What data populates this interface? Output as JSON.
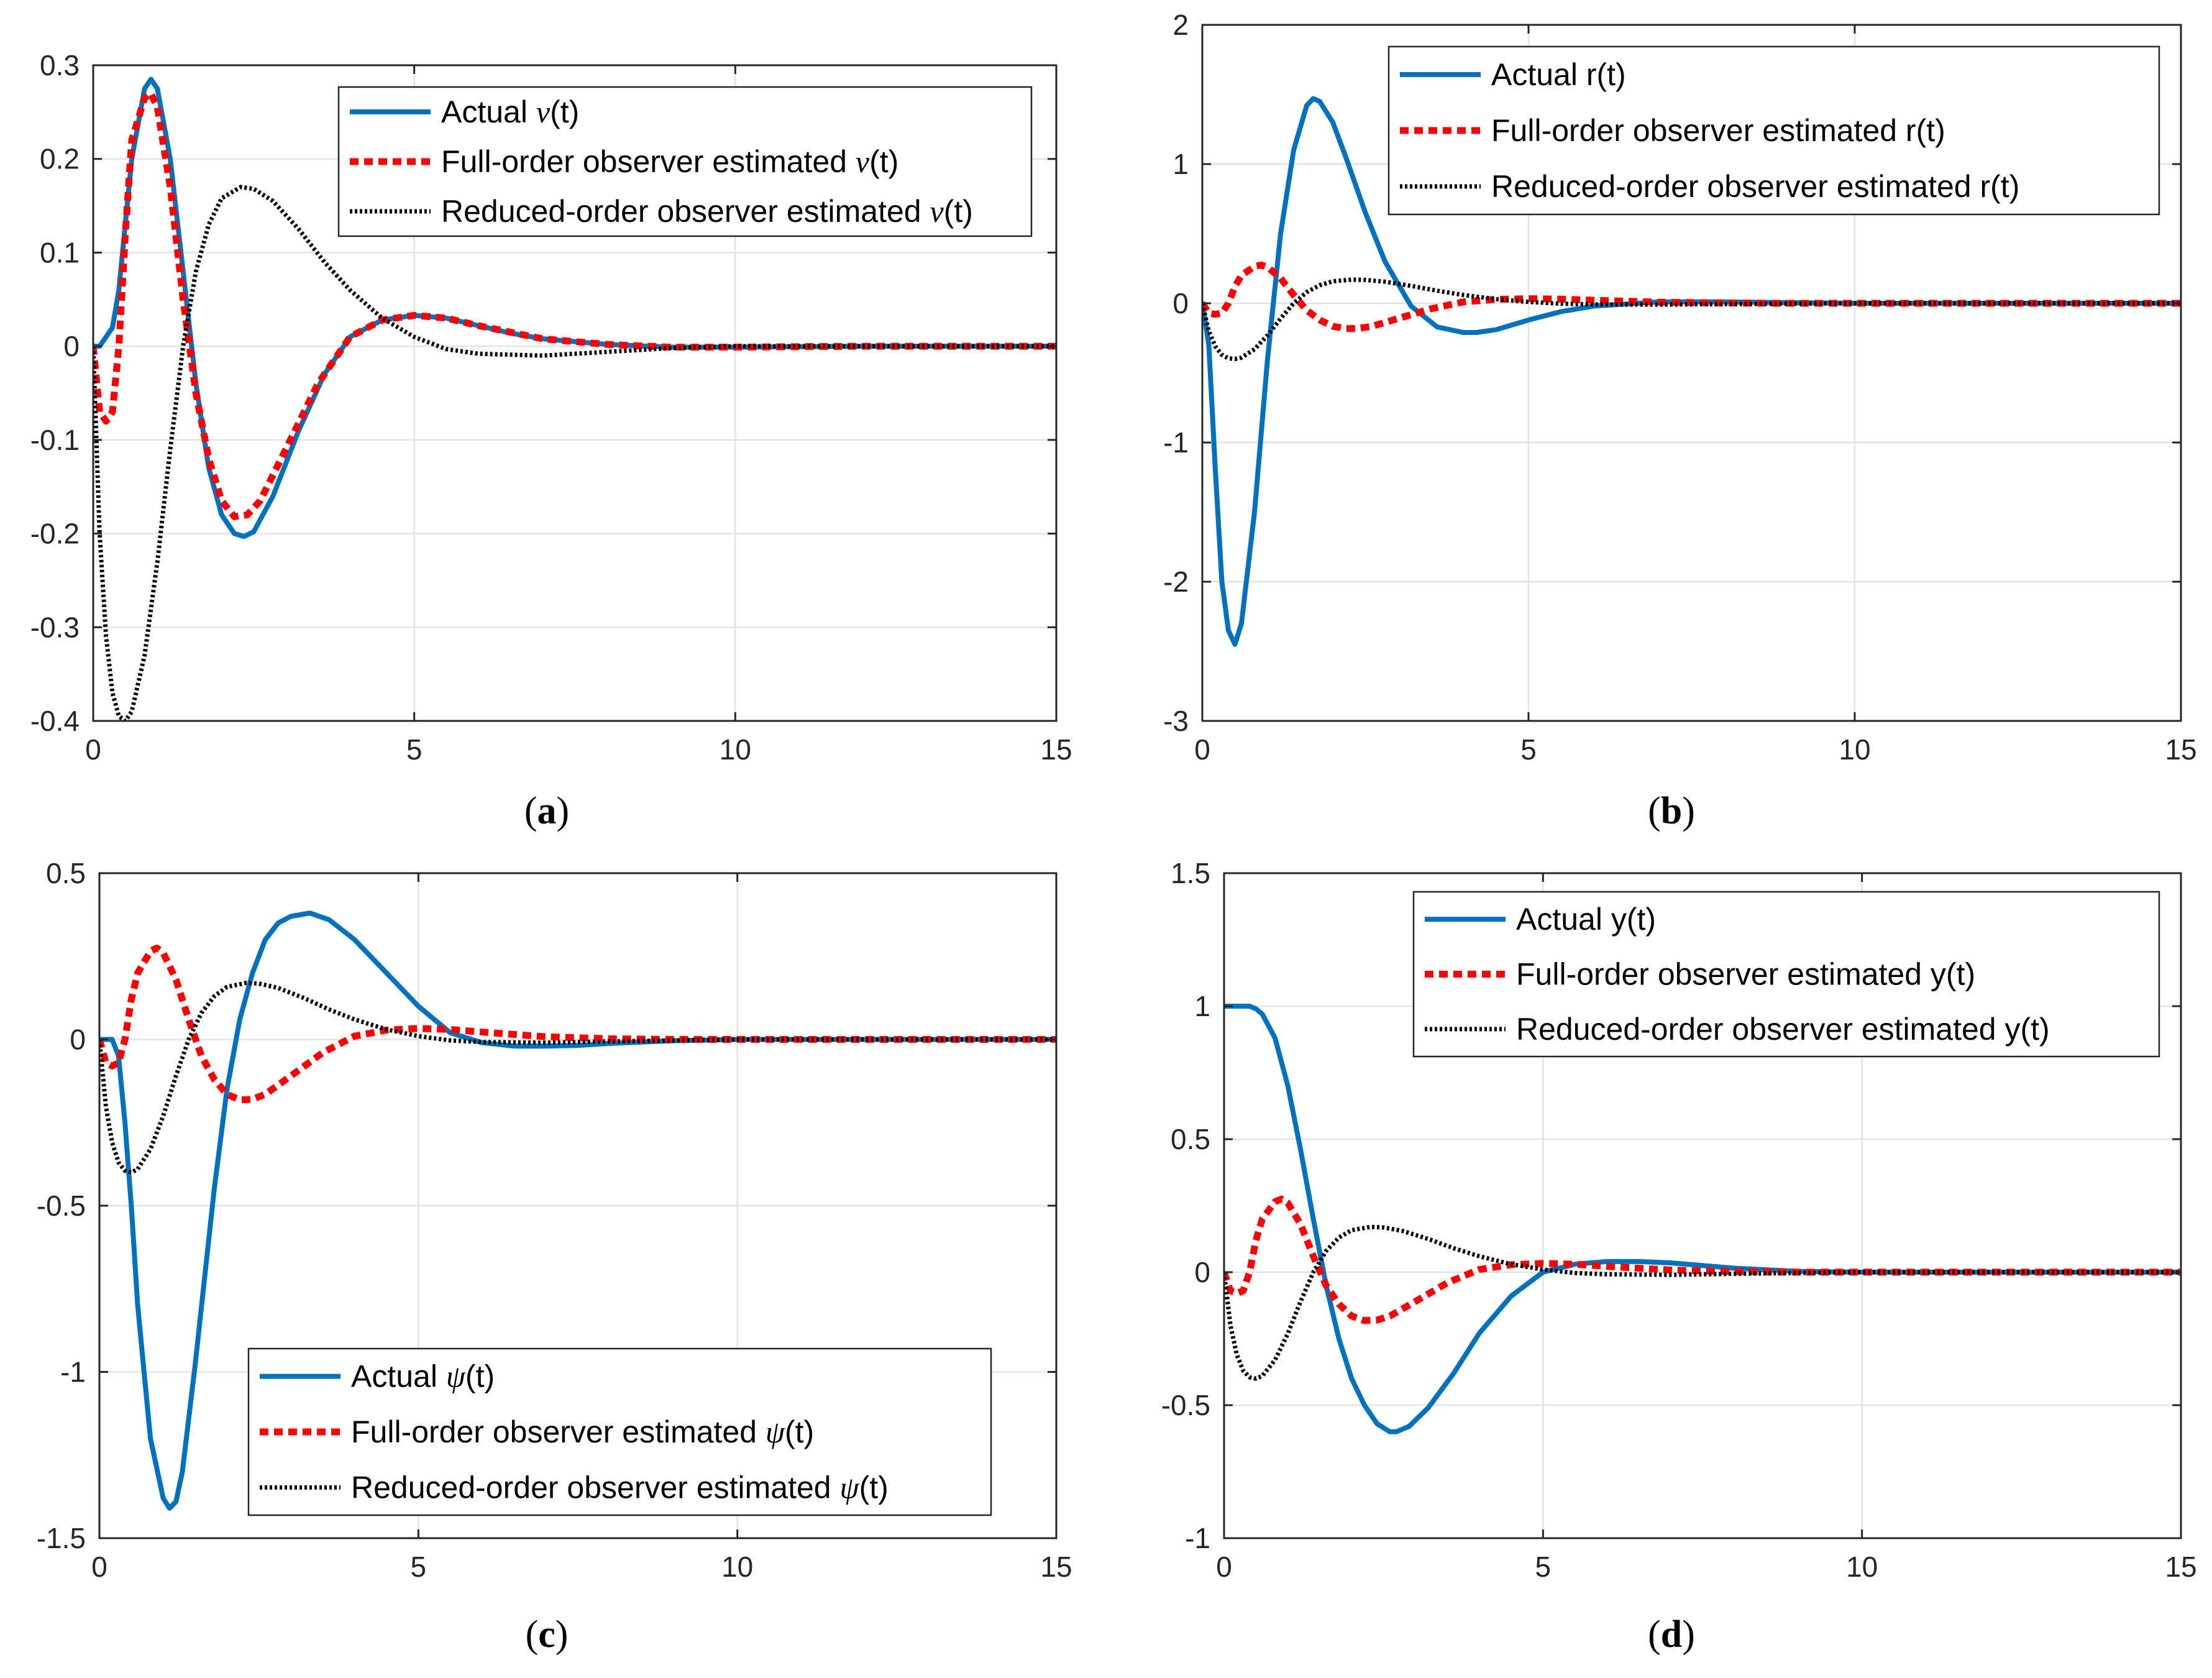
{
  "colors": {
    "actual": "#0072BD",
    "full_order": "#FF0000",
    "reduced_order": "#000000",
    "grid": "#E3E3E3",
    "axis": "#262626"
  },
  "chart_data": [
    {
      "type": "line",
      "panel": "a",
      "caption_open": "(",
      "caption_letter": "a",
      "caption_close": ")",
      "xlim": [
        0,
        15
      ],
      "ylim": [
        -0.4,
        0.3
      ],
      "xticks": [
        0,
        5,
        10,
        15
      ],
      "xtick_labels": [
        "0",
        "5",
        "10",
        "15"
      ],
      "yticks": [
        -0.4,
        -0.3,
        -0.2,
        -0.1,
        0,
        0.1,
        0.2,
        0.3
      ],
      "ytick_labels": [
        "-0.4",
        "-0.3",
        "-0.2",
        "-0.1",
        "0",
        "0.1",
        "0.2",
        "0.3"
      ],
      "grid": true,
      "legend_position": "top-right",
      "series": [
        {
          "name": "Actual ν(t)",
          "prefix": "Actual ",
          "symbol": "ν",
          "suffix": "(t)",
          "style": "solid",
          "color_key": "actual",
          "x": [
            0,
            0.1,
            0.2,
            0.3,
            0.4,
            0.6,
            0.8,
            0.9,
            1.0,
            1.2,
            1.4,
            1.6,
            1.8,
            2.0,
            2.2,
            2.35,
            2.5,
            2.8,
            3.2,
            3.6,
            4.0,
            4.5,
            5.0,
            5.5,
            6.0,
            6.5,
            7.0,
            8.0,
            9.0,
            10.0,
            12.0,
            15.0
          ],
          "y": [
            0,
            0,
            0.01,
            0.02,
            0.06,
            0.2,
            0.275,
            0.285,
            0.275,
            0.2,
            0.08,
            -0.04,
            -0.13,
            -0.18,
            -0.2,
            -0.203,
            -0.198,
            -0.16,
            -0.09,
            -0.03,
            0.01,
            0.028,
            0.033,
            0.03,
            0.022,
            0.014,
            0.008,
            0.002,
            -0.001,
            -0.001,
            0,
            0
          ]
        },
        {
          "name": "Full-order observer estimated ν(t)",
          "prefix": "Full-order observer estimated ",
          "symbol": "ν",
          "suffix": "(t)",
          "style": "dashed",
          "color_key": "full_order",
          "x": [
            0,
            0.1,
            0.2,
            0.3,
            0.4,
            0.5,
            0.6,
            0.8,
            0.9,
            1.0,
            1.2,
            1.4,
            1.6,
            1.8,
            2.0,
            2.2,
            2.4,
            2.6,
            3.0,
            3.5,
            4.0,
            4.5,
            5.0,
            5.5,
            6.0,
            7.0,
            8.0,
            9.0,
            10.0,
            12.0,
            15.0
          ],
          "y": [
            0,
            -0.07,
            -0.08,
            -0.07,
            0.0,
            0.12,
            0.22,
            0.265,
            0.27,
            0.255,
            0.17,
            0.05,
            -0.05,
            -0.12,
            -0.165,
            -0.182,
            -0.18,
            -0.165,
            -0.11,
            -0.04,
            0.01,
            0.028,
            0.033,
            0.03,
            0.022,
            0.008,
            0.002,
            -0.001,
            -0.001,
            0,
            0
          ]
        },
        {
          "name": "Reduced-order observer estimated ν(t)",
          "prefix": "Reduced-order observer estimated ",
          "symbol": "ν",
          "suffix": "(t)",
          "style": "dotted",
          "color_key": "reduced_order",
          "x": [
            0,
            0.1,
            0.2,
            0.3,
            0.4,
            0.5,
            0.6,
            0.8,
            1.0,
            1.2,
            1.4,
            1.6,
            1.8,
            2.0,
            2.3,
            2.5,
            2.8,
            3.2,
            3.6,
            4.0,
            4.5,
            5.0,
            5.5,
            6.0,
            7.0,
            8.0,
            9.0,
            10.0,
            12.0,
            15.0
          ],
          "y": [
            0,
            -0.2,
            -0.31,
            -0.37,
            -0.395,
            -0.4,
            -0.39,
            -0.33,
            -0.23,
            -0.11,
            0.0,
            0.08,
            0.13,
            0.158,
            0.17,
            0.168,
            0.155,
            0.125,
            0.09,
            0.06,
            0.03,
            0.01,
            -0.003,
            -0.008,
            -0.01,
            -0.006,
            -0.002,
            0,
            0,
            0
          ]
        }
      ]
    },
    {
      "type": "line",
      "panel": "b",
      "caption_open": "(",
      "caption_letter": "b",
      "caption_close": ")",
      "xlim": [
        0,
        15
      ],
      "ylim": [
        -3,
        2
      ],
      "xticks": [
        0,
        5,
        10,
        15
      ],
      "xtick_labels": [
        "0",
        "5",
        "10",
        "15"
      ],
      "yticks": [
        -3,
        -2,
        -1,
        0,
        1,
        2
      ],
      "ytick_labels": [
        "-3",
        "-2",
        "-1",
        "0",
        "1",
        "2"
      ],
      "grid": true,
      "legend_position": "top-right",
      "series": [
        {
          "name": "Actual r(t)",
          "prefix": "Actual r(t)",
          "symbol": "",
          "suffix": "",
          "style": "solid",
          "color_key": "actual",
          "x": [
            0,
            0.1,
            0.2,
            0.3,
            0.4,
            0.5,
            0.6,
            0.8,
            1.0,
            1.2,
            1.4,
            1.6,
            1.7,
            1.8,
            2.0,
            2.2,
            2.5,
            2.8,
            3.2,
            3.6,
            4.0,
            4.2,
            4.5,
            5.0,
            5.5,
            6.0,
            7.0,
            8.0,
            10.0,
            15.0
          ],
          "y": [
            0,
            -0.3,
            -1.2,
            -2.0,
            -2.35,
            -2.45,
            -2.3,
            -1.5,
            -0.4,
            0.5,
            1.1,
            1.42,
            1.47,
            1.45,
            1.3,
            1.05,
            0.65,
            0.3,
            -0.02,
            -0.17,
            -0.21,
            -0.21,
            -0.19,
            -0.12,
            -0.06,
            -0.02,
            0.01,
            0.01,
            0,
            0
          ]
        },
        {
          "name": "Full-order observer estimated r(t)",
          "prefix": "Full-order observer estimated r(t)",
          "symbol": "",
          "suffix": "",
          "style": "dashed",
          "color_key": "full_order",
          "x": [
            0,
            0.1,
            0.2,
            0.3,
            0.4,
            0.5,
            0.6,
            0.8,
            0.9,
            1.0,
            1.2,
            1.4,
            1.6,
            1.8,
            2.0,
            2.2,
            2.4,
            2.6,
            3.0,
            3.5,
            4.0,
            4.5,
            5.0,
            5.5,
            6.0,
            7.0,
            8.0,
            9.0,
            10.0,
            15.0
          ],
          "y": [
            0,
            -0.07,
            -0.08,
            -0.07,
            0.0,
            0.12,
            0.2,
            0.265,
            0.275,
            0.26,
            0.18,
            0.06,
            -0.05,
            -0.12,
            -0.165,
            -0.182,
            -0.18,
            -0.165,
            -0.11,
            -0.04,
            0.01,
            0.028,
            0.033,
            0.03,
            0.022,
            0.008,
            0.002,
            0,
            0,
            0
          ]
        },
        {
          "name": "Reduced-order observer estimated r(t)",
          "prefix": "Reduced-order observer estimated r(t)",
          "symbol": "",
          "suffix": "",
          "style": "dotted",
          "color_key": "reduced_order",
          "x": [
            0,
            0.1,
            0.2,
            0.3,
            0.4,
            0.5,
            0.6,
            0.8,
            1.0,
            1.2,
            1.4,
            1.6,
            1.8,
            2.0,
            2.3,
            2.5,
            2.8,
            3.2,
            3.6,
            4.0,
            4.5,
            5.0,
            5.5,
            6.0,
            7.0,
            8.0,
            10.0,
            15.0
          ],
          "y": [
            0,
            -0.2,
            -0.31,
            -0.37,
            -0.395,
            -0.4,
            -0.39,
            -0.33,
            -0.23,
            -0.11,
            0.0,
            0.08,
            0.13,
            0.158,
            0.17,
            0.168,
            0.155,
            0.125,
            0.09,
            0.06,
            0.03,
            0.01,
            -0.003,
            -0.008,
            -0.01,
            -0.006,
            0,
            0
          ]
        }
      ]
    },
    {
      "type": "line",
      "panel": "c",
      "caption_open": "(",
      "caption_letter": "c",
      "caption_close": ")",
      "xlim": [
        0,
        15
      ],
      "ylim": [
        -1.5,
        0.5
      ],
      "xticks": [
        0,
        5,
        10,
        15
      ],
      "xtick_labels": [
        "0",
        "5",
        "10",
        "15"
      ],
      "yticks": [
        -1.5,
        -1,
        -0.5,
        0,
        0.5
      ],
      "ytick_labels": [
        "-1.5",
        "-1",
        "-0.5",
        "0",
        "0.5"
      ],
      "grid": true,
      "legend_position": "bottom-left",
      "series": [
        {
          "name": "Actual ψ(t)",
          "prefix": "Actual ",
          "symbol": "ψ",
          "suffix": "(t)",
          "style": "solid",
          "color_key": "actual",
          "x": [
            0,
            0.1,
            0.2,
            0.3,
            0.4,
            0.5,
            0.6,
            0.8,
            1.0,
            1.1,
            1.2,
            1.3,
            1.5,
            1.8,
            2.0,
            2.2,
            2.4,
            2.6,
            2.8,
            3.0,
            3.3,
            3.6,
            4.0,
            4.5,
            5.0,
            5.5,
            6.0,
            6.5,
            7.0,
            7.5,
            8.0,
            9.0,
            10.0,
            12.0,
            15.0
          ],
          "y": [
            0,
            0,
            0,
            -0.05,
            -0.25,
            -0.5,
            -0.8,
            -1.2,
            -1.38,
            -1.41,
            -1.39,
            -1.3,
            -0.98,
            -0.45,
            -0.15,
            0.06,
            0.2,
            0.3,
            0.35,
            0.37,
            0.38,
            0.36,
            0.3,
            0.2,
            0.1,
            0.02,
            -0.01,
            -0.02,
            -0.02,
            -0.018,
            -0.012,
            -0.004,
            0,
            0,
            0
          ]
        },
        {
          "name": "Full-order observer estimated ψ(t)",
          "prefix": "Full-order observer estimated ",
          "symbol": "ψ",
          "suffix": "(t)",
          "style": "dashed",
          "color_key": "full_order",
          "x": [
            0,
            0.1,
            0.2,
            0.3,
            0.4,
            0.5,
            0.6,
            0.8,
            0.9,
            1.0,
            1.2,
            1.4,
            1.6,
            1.8,
            2.0,
            2.2,
            2.4,
            2.6,
            3.0,
            3.5,
            4.0,
            4.5,
            5.0,
            5.5,
            6.0,
            7.0,
            8.0,
            9.0,
            10.0,
            15.0
          ],
          "y": [
            0,
            -0.07,
            -0.08,
            -0.07,
            0.0,
            0.12,
            0.2,
            0.265,
            0.275,
            0.26,
            0.18,
            0.06,
            -0.05,
            -0.12,
            -0.165,
            -0.182,
            -0.18,
            -0.165,
            -0.11,
            -0.04,
            0.01,
            0.028,
            0.033,
            0.03,
            0.022,
            0.008,
            0.002,
            0,
            0,
            0
          ]
        },
        {
          "name": "Reduced-order observer estimated ψ(t)",
          "prefix": "Reduced-order observer estimated ",
          "symbol": "ψ",
          "suffix": "(t)",
          "style": "dotted",
          "color_key": "reduced_order",
          "x": [
            0,
            0.1,
            0.2,
            0.3,
            0.4,
            0.5,
            0.6,
            0.8,
            1.0,
            1.2,
            1.4,
            1.6,
            1.8,
            2.0,
            2.3,
            2.5,
            2.8,
            3.2,
            3.6,
            4.0,
            4.5,
            5.0,
            5.5,
            6.0,
            7.0,
            8.0,
            10.0,
            15.0
          ],
          "y": [
            0,
            -0.2,
            -0.31,
            -0.37,
            -0.395,
            -0.4,
            -0.39,
            -0.33,
            -0.23,
            -0.11,
            0.0,
            0.08,
            0.13,
            0.158,
            0.17,
            0.168,
            0.155,
            0.125,
            0.09,
            0.06,
            0.03,
            0.01,
            -0.003,
            -0.008,
            -0.01,
            -0.006,
            0,
            0
          ]
        }
      ]
    },
    {
      "type": "line",
      "panel": "d",
      "caption_open": "(",
      "caption_letter": "d",
      "caption_close": ")",
      "xlim": [
        0,
        15
      ],
      "ylim": [
        -1,
        1.5
      ],
      "xticks": [
        0,
        5,
        10,
        15
      ],
      "xtick_labels": [
        "0",
        "5",
        "10",
        "15"
      ],
      "yticks": [
        -1,
        -0.5,
        0,
        0.5,
        1,
        1.5
      ],
      "ytick_labels": [
        "-1",
        "-0.5",
        "0",
        "0.5",
        "1",
        "1.5"
      ],
      "grid": true,
      "legend_position": "top-right",
      "series": [
        {
          "name": "Actual y(t)",
          "prefix": "Actual y(t)",
          "symbol": "",
          "suffix": "",
          "style": "solid",
          "color_key": "actual",
          "x": [
            0,
            0.2,
            0.4,
            0.5,
            0.6,
            0.8,
            1.0,
            1.2,
            1.4,
            1.6,
            1.8,
            2.0,
            2.2,
            2.4,
            2.6,
            2.7,
            2.9,
            3.2,
            3.6,
            4.0,
            4.5,
            5.0,
            5.5,
            6.0,
            6.5,
            7.0,
            8.0,
            9.0,
            10.0,
            15.0
          ],
          "y": [
            1,
            1,
            1,
            0.99,
            0.97,
            0.88,
            0.7,
            0.46,
            0.2,
            -0.05,
            -0.25,
            -0.4,
            -0.5,
            -0.57,
            -0.6,
            -0.6,
            -0.58,
            -0.51,
            -0.38,
            -0.23,
            -0.09,
            0.0,
            0.03,
            0.04,
            0.04,
            0.035,
            0.015,
            0.003,
            0,
            0
          ]
        },
        {
          "name": "Full-order observer estimated y(t)",
          "prefix": "Full-order observer estimated y(t)",
          "symbol": "",
          "suffix": "",
          "style": "dashed",
          "color_key": "full_order",
          "x": [
            0,
            0.1,
            0.2,
            0.3,
            0.4,
            0.5,
            0.6,
            0.8,
            0.9,
            1.0,
            1.2,
            1.4,
            1.6,
            1.8,
            2.0,
            2.2,
            2.4,
            2.6,
            3.0,
            3.5,
            4.0,
            4.5,
            5.0,
            5.5,
            6.0,
            7.0,
            8.0,
            9.0,
            10.0,
            15.0
          ],
          "y": [
            0,
            -0.07,
            -0.08,
            -0.07,
            0.0,
            0.12,
            0.2,
            0.265,
            0.275,
            0.26,
            0.18,
            0.06,
            -0.05,
            -0.12,
            -0.165,
            -0.182,
            -0.18,
            -0.165,
            -0.11,
            -0.04,
            0.01,
            0.028,
            0.033,
            0.03,
            0.022,
            0.008,
            0.002,
            0,
            0,
            0
          ]
        },
        {
          "name": "Reduced-order observer estimated y(t)",
          "prefix": "Reduced-order observer estimated y(t)",
          "symbol": "",
          "suffix": "",
          "style": "dotted",
          "color_key": "reduced_order",
          "x": [
            0,
            0.1,
            0.2,
            0.3,
            0.4,
            0.5,
            0.6,
            0.8,
            1.0,
            1.2,
            1.4,
            1.6,
            1.8,
            2.0,
            2.3,
            2.5,
            2.8,
            3.2,
            3.6,
            4.0,
            4.5,
            5.0,
            5.5,
            6.0,
            7.0,
            8.0,
            10.0,
            15.0
          ],
          "y": [
            0,
            -0.2,
            -0.31,
            -0.37,
            -0.395,
            -0.4,
            -0.39,
            -0.33,
            -0.23,
            -0.11,
            0.0,
            0.08,
            0.13,
            0.158,
            0.17,
            0.168,
            0.155,
            0.125,
            0.09,
            0.06,
            0.03,
            0.01,
            -0.003,
            -0.008,
            -0.01,
            -0.006,
            0,
            0
          ]
        }
      ]
    }
  ]
}
